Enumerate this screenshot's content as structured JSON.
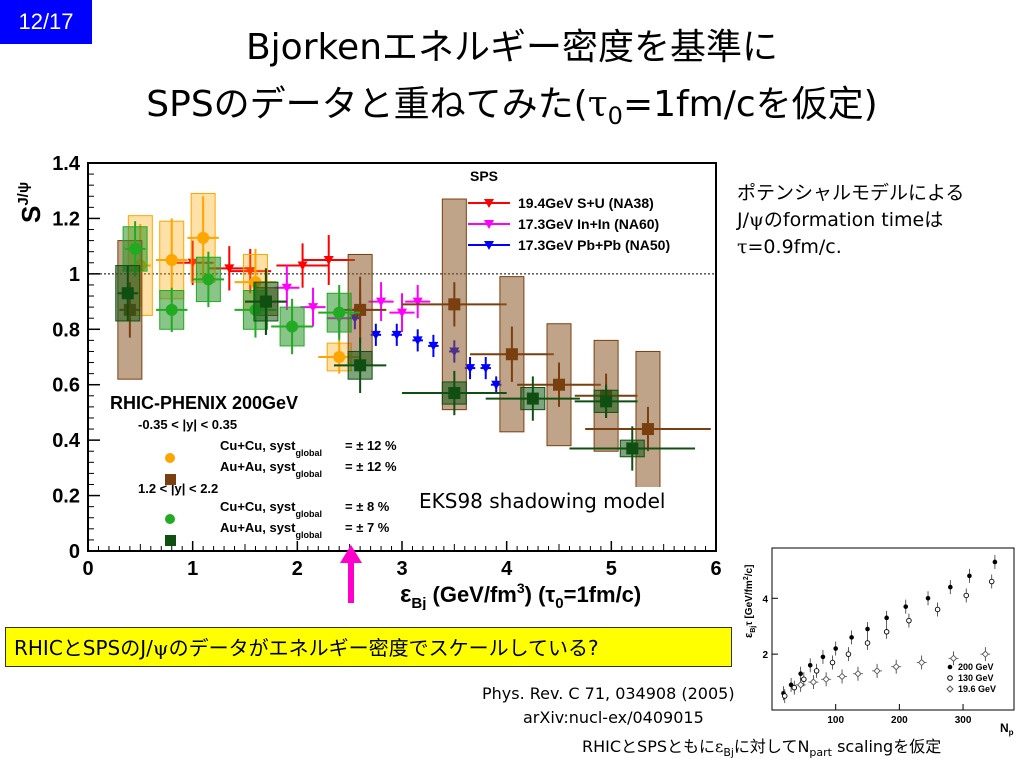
{
  "slide": {
    "page_number": "12/17",
    "title_line1": "Bjorkenエネルギー密度を基準に",
    "title_line2_pre": "SPSのデータと重ねてみた(",
    "title_tau": "τ",
    "title_sub0": "0",
    "title_line2_post": "=1fm/cを仮定)"
  },
  "note": {
    "line1": "ポテンシャルモデルによる",
    "line2_pre": "J/",
    "line2_psi": "ψ",
    "line2_post": "のformation timeは",
    "line3_tau": "τ",
    "line3_rest": "=0.9fm/c."
  },
  "bottom_box": {
    "pre": "RHICとSPSのJ/",
    "psi": "ψ",
    "post": "のデータがエネルギー密度でスケールしている?"
  },
  "eks_label": "EKS98 shadowing model",
  "references": {
    "line1": "Phys. Rev. C 71, 034908 (2005)",
    "line2": "arXiv:nucl-ex/0409015"
  },
  "scaling_note": {
    "pre": "RHICとSPSともに",
    "eps": "ε",
    "eps_sub": "Bj",
    "mid": "に対してN",
    "n_sub": "part",
    "post": " scalingを仮定"
  },
  "colors": {
    "page_badge": "#0000ff",
    "highlight_box": "#ffff00",
    "arrow": "#ff00cc",
    "cucu_mid": "#ffa500",
    "auau_mid": "#7a3f0f",
    "cucu_fwd": "#22aa22",
    "auau_fwd": "#0f4f12",
    "na38": "#ff0000",
    "na60": "#ff00ff",
    "na50": "#0000ff"
  },
  "chart_data": [
    {
      "type": "scatter",
      "ylabel_main": "S",
      "ylabel_sup": "J/ψ",
      "xlabel_eps": "ε",
      "xlabel_sub": "Bj",
      "xlabel_units": "(GeV/fm",
      "xlabel_units_sup": "3",
      "xlabel_tau_open": ") (τ",
      "xlabel_tau_sub": "0",
      "xlabel_tau_close": "=1fm/c)",
      "xlim": [
        0,
        6
      ],
      "ylim": [
        0,
        1.4
      ],
      "xticks": [
        "0",
        "1",
        "2",
        "3",
        "4",
        "5",
        "6"
      ],
      "yticks": [
        "0",
        "0.2",
        "0.4",
        "0.6",
        "0.8",
        "1",
        "1.2",
        "1.4"
      ],
      "reference_line": 1.0,
      "legend_sps": {
        "header": "SPS",
        "entries": [
          "19.4GeV S+U (NA38)",
          "17.3GeV In+In (NA60)",
          "17.3GeV Pb+Pb (NA50)"
        ]
      },
      "legend_rhic": {
        "title": "RHIC-PHENIX 200GeV",
        "mid_range": "-0.35 < |y| < 0.35",
        "fwd_range": "1.2 < |y| < 2.2",
        "cucu_mid": "Cu+Cu, syst",
        "cucu_mid_val": "= ± 12 %",
        "auau_mid": "Au+Au, syst",
        "auau_mid_val": "= ± 12 %",
        "cucu_fwd": "Cu+Cu, syst",
        "cucu_fwd_val": "= ± 8 %",
        "auau_fwd": "Au+Au, syst",
        "auau_fwd_val": "= ± 7 %",
        "global_sub": "global"
      },
      "series": [
        {
          "name": "19.4GeV S+U (NA38)",
          "marker": "triangle-down",
          "x": [
            1.0,
            1.35,
            1.55,
            2.05,
            2.3
          ],
          "y": [
            1.04,
            1.02,
            1.01,
            1.03,
            1.05
          ],
          "xerr": [
            0.2,
            0.2,
            0.2,
            0.25,
            0.25
          ],
          "yerr": [
            0.08,
            0.08,
            0.08,
            0.08,
            0.09
          ]
        },
        {
          "name": "17.3GeV In+In (NA60)",
          "marker": "triangle-down",
          "x": [
            1.9,
            2.15,
            2.4,
            2.6,
            2.8,
            3.0,
            3.15
          ],
          "y": [
            0.95,
            0.88,
            0.84,
            0.87,
            0.9,
            0.86,
            0.9
          ],
          "xerr": [
            0.12,
            0.12,
            0.12,
            0.12,
            0.12,
            0.12,
            0.12
          ],
          "yerr": [
            0.08,
            0.07,
            0.07,
            0.07,
            0.07,
            0.07,
            0.06
          ]
        },
        {
          "name": "17.3GeV Pb+Pb (NA50)",
          "marker": "triangle-down",
          "x": [
            2.55,
            2.75,
            2.95,
            3.15,
            3.3,
            3.5,
            3.65,
            3.8,
            3.9
          ],
          "y": [
            0.84,
            0.78,
            0.78,
            0.76,
            0.74,
            0.72,
            0.66,
            0.66,
            0.6
          ],
          "xerr": [
            0.05,
            0.05,
            0.05,
            0.05,
            0.05,
            0.05,
            0.05,
            0.05,
            0.05
          ],
          "yerr": [
            0.04,
            0.04,
            0.04,
            0.04,
            0.04,
            0.04,
            0.04,
            0.04,
            0.03
          ]
        },
        {
          "name": "Cu+Cu |y|<0.35",
          "marker": "circle",
          "x": [
            0.5,
            0.8,
            1.1,
            1.6,
            2.4
          ],
          "y": [
            1.03,
            1.05,
            1.13,
            0.97,
            0.7
          ],
          "xerr": [
            0.1,
            0.15,
            0.15,
            0.2,
            0.2
          ],
          "yerr": [
            0.15,
            0.15,
            0.15,
            0.12,
            0.06
          ],
          "syst": [
            0.18,
            0.14,
            0.16,
            0.1,
            0.05
          ]
        },
        {
          "name": "Au+Au |y|<0.35",
          "marker": "square",
          "x": [
            0.4,
            1.7,
            2.6,
            3.5,
            4.05,
            4.5,
            4.95,
            5.35
          ],
          "y": [
            0.87,
            0.9,
            0.87,
            0.89,
            0.71,
            0.6,
            0.56,
            0.44
          ],
          "xerr": [
            0.1,
            0.2,
            0.25,
            0.5,
            0.4,
            0.4,
            0.3,
            0.6
          ],
          "yerr": [
            0.1,
            0.12,
            0.12,
            0.08,
            0.1,
            0.08,
            0.08,
            0.08
          ],
          "syst": [
            0.25,
            0.05,
            0.2,
            0.38,
            0.28,
            0.22,
            0.2,
            0.28
          ]
        },
        {
          "name": "Cu+Cu 1.2<|y|<2.2",
          "marker": "circle",
          "x": [
            0.45,
            0.8,
            1.15,
            1.6,
            1.95,
            2.4
          ],
          "y": [
            1.09,
            0.87,
            0.98,
            0.87,
            0.81,
            0.86
          ],
          "xerr": [
            0.1,
            0.15,
            0.15,
            0.2,
            0.2,
            0.2
          ],
          "yerr": [
            0.1,
            0.08,
            0.1,
            0.1,
            0.1,
            0.1
          ],
          "syst": [
            0.08,
            0.07,
            0.08,
            0.07,
            0.07,
            0.07
          ]
        },
        {
          "name": "Au+Au 1.2<|y|<2.2",
          "marker": "square",
          "x": [
            0.38,
            1.7,
            2.6,
            3.5,
            4.25,
            4.95,
            5.2
          ],
          "y": [
            0.93,
            0.9,
            0.67,
            0.57,
            0.55,
            0.54,
            0.37
          ],
          "xerr": [
            0.1,
            0.2,
            0.25,
            0.5,
            0.45,
            0.3,
            0.6
          ],
          "yerr": [
            0.1,
            0.12,
            0.1,
            0.08,
            0.08,
            0.06,
            0.08
          ],
          "syst": [
            0.1,
            0.07,
            0.05,
            0.04,
            0.04,
            0.04,
            0.03
          ]
        }
      ]
    },
    {
      "type": "scatter",
      "ylabel": "ε",
      "ylabel_sub": "Bj",
      "ylabel_rest": "τ [GeV/fm",
      "ylabel_sup": "2",
      "ylabel_end": "/c]",
      "xlabel": "N",
      "xlabel_sub": "p",
      "xlim": [
        0,
        380
      ],
      "ylim": [
        0,
        5.8
      ],
      "xticks": [
        "100",
        "200",
        "300"
      ],
      "yticks": [
        "2",
        "4"
      ],
      "legend": [
        "200 GeV",
        "130 GeV",
        "19.6 GeV"
      ],
      "series": [
        {
          "name": "200 GeV",
          "marker": "filled-circle",
          "x": [
            18,
            30,
            45,
            60,
            80,
            100,
            125,
            150,
            180,
            210,
            245,
            280,
            310,
            350
          ],
          "y": [
            0.6,
            0.9,
            1.3,
            1.6,
            1.9,
            2.2,
            2.6,
            2.9,
            3.3,
            3.7,
            4.0,
            4.4,
            4.8,
            5.3
          ]
        },
        {
          "name": "130 GeV",
          "marker": "open-circle",
          "x": [
            20,
            35,
            50,
            70,
            95,
            120,
            150,
            180,
            215,
            260,
            305,
            345
          ],
          "y": [
            0.5,
            0.8,
            1.1,
            1.4,
            1.7,
            2.0,
            2.4,
            2.8,
            3.2,
            3.6,
            4.1,
            4.6
          ]
        },
        {
          "name": "19.6 GeV",
          "marker": "open-diamond",
          "x": [
            45,
            65,
            85,
            110,
            135,
            165,
            195,
            235,
            285,
            335
          ],
          "y": [
            0.9,
            1.0,
            1.1,
            1.2,
            1.3,
            1.4,
            1.55,
            1.7,
            1.85,
            2.0
          ]
        }
      ]
    }
  ]
}
